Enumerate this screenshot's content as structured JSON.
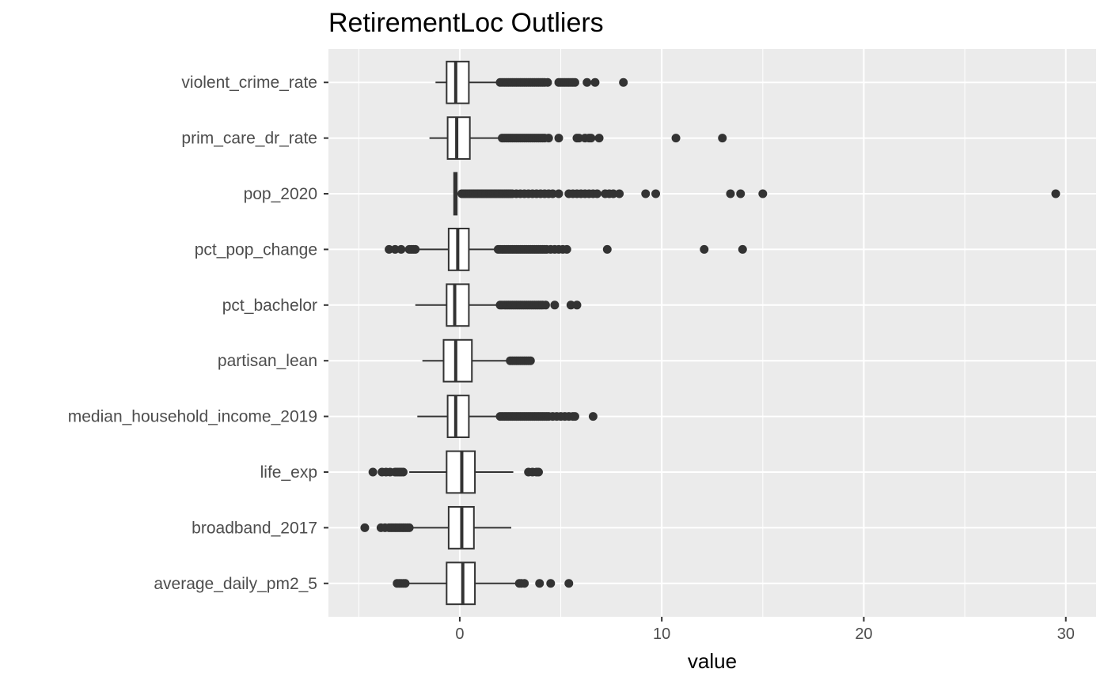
{
  "chart_data": {
    "type": "boxplot",
    "orientation": "horizontal",
    "title": "RetirementLoc Outliers",
    "xlabel": "value",
    "ylabel": "",
    "xlim": [
      -6.5,
      31.5
    ],
    "x_ticks": [
      0,
      10,
      20,
      30
    ],
    "x_tick_labels": [
      "0",
      "10",
      "20",
      "30"
    ],
    "grid": true,
    "panel_background": "#ebebeb",
    "grid_color": "#ffffff",
    "box_fill": "#ffffff",
    "line_color": "#333333",
    "categories": [
      "violent_crime_rate",
      "prim_care_dr_rate",
      "pop_2020",
      "pct_pop_change",
      "pct_bachelor",
      "partisan_lean",
      "median_household_income_2019",
      "life_exp",
      "broadband_2017",
      "average_daily_pm2_5"
    ],
    "series": [
      {
        "category": "violent_crime_rate",
        "min": -1.2,
        "q1": -0.65,
        "median": -0.2,
        "q3": 0.45,
        "max": 2.0,
        "outliers": [
          2.0,
          2.1,
          2.2,
          2.3,
          2.4,
          2.5,
          2.6,
          2.7,
          2.8,
          2.9,
          3.0,
          3.1,
          3.2,
          3.3,
          3.4,
          3.5,
          3.6,
          3.7,
          3.8,
          3.9,
          4.0,
          4.1,
          4.2,
          4.35,
          4.9,
          5.0,
          5.1,
          5.2,
          5.3,
          5.4,
          5.5,
          5.6,
          5.7,
          6.3,
          6.7,
          8.1
        ]
      },
      {
        "category": "prim_care_dr_rate",
        "min": -1.5,
        "q1": -0.6,
        "median": -0.15,
        "q3": 0.5,
        "max": 2.1,
        "outliers": [
          2.1,
          2.2,
          2.3,
          2.4,
          2.5,
          2.6,
          2.7,
          2.8,
          2.9,
          3.0,
          3.1,
          3.2,
          3.3,
          3.4,
          3.5,
          3.6,
          3.7,
          3.8,
          3.9,
          4.0,
          4.1,
          4.2,
          4.4,
          4.9,
          5.8,
          5.9,
          6.2,
          6.4,
          6.5,
          6.9,
          10.7,
          13.0
        ]
      },
      {
        "category": "pop_2020",
        "min": -0.3,
        "q1": -0.28,
        "median": -0.22,
        "q3": -0.15,
        "max": 0.1,
        "outliers": [
          0.1,
          0.2,
          0.3,
          0.4,
          0.5,
          0.6,
          0.7,
          0.8,
          0.9,
          1.0,
          1.1,
          1.2,
          1.3,
          1.4,
          1.5,
          1.6,
          1.7,
          1.8,
          1.9,
          2.0,
          2.1,
          2.2,
          2.3,
          2.4,
          2.5,
          2.6,
          2.8,
          3.0,
          3.2,
          3.4,
          3.6,
          3.8,
          4.0,
          4.2,
          4.4,
          4.6,
          4.9,
          5.4,
          5.6,
          5.8,
          6.0,
          6.2,
          6.4,
          6.6,
          6.8,
          7.2,
          7.4,
          7.6,
          7.9,
          9.2,
          9.7,
          13.4,
          13.9,
          15.0,
          29.5
        ]
      },
      {
        "category": "pct_pop_change",
        "min": -2.2,
        "q1": -0.55,
        "median": -0.1,
        "q3": 0.45,
        "max": 1.9,
        "outliers": [
          -3.5,
          -3.2,
          -2.9,
          -2.5,
          -2.4,
          -2.3,
          -2.2,
          1.9,
          2.0,
          2.1,
          2.2,
          2.3,
          2.4,
          2.5,
          2.6,
          2.7,
          2.8,
          2.9,
          3.0,
          3.1,
          3.2,
          3.3,
          3.4,
          3.5,
          3.6,
          3.7,
          3.8,
          3.9,
          4.0,
          4.1,
          4.2,
          4.3,
          4.5,
          4.7,
          4.9,
          5.1,
          5.3,
          7.3,
          12.1,
          14.0
        ]
      },
      {
        "category": "pct_bachelor",
        "min": -2.2,
        "q1": -0.65,
        "median": -0.25,
        "q3": 0.45,
        "max": 2.0,
        "outliers": [
          2.0,
          2.1,
          2.2,
          2.3,
          2.4,
          2.5,
          2.6,
          2.7,
          2.8,
          2.9,
          3.0,
          3.1,
          3.2,
          3.3,
          3.4,
          3.5,
          3.6,
          3.7,
          3.8,
          3.9,
          4.0,
          4.1,
          4.25,
          4.7,
          5.5,
          5.8
        ]
      },
      {
        "category": "partisan_lean",
        "min": -1.85,
        "q1": -0.8,
        "median": -0.2,
        "q3": 0.6,
        "max": 2.5,
        "outliers": [
          2.5,
          2.6,
          2.7,
          2.8,
          2.9,
          3.0,
          3.1,
          3.2,
          3.3,
          3.4,
          3.5
        ]
      },
      {
        "category": "median_household_income_2019",
        "min": -2.1,
        "q1": -0.6,
        "median": -0.2,
        "q3": 0.45,
        "max": 2.0,
        "outliers": [
          2.0,
          2.1,
          2.2,
          2.3,
          2.4,
          2.5,
          2.6,
          2.7,
          2.8,
          2.9,
          3.0,
          3.1,
          3.2,
          3.3,
          3.4,
          3.5,
          3.6,
          3.7,
          3.8,
          3.9,
          4.0,
          4.1,
          4.2,
          4.3,
          4.4,
          4.6,
          4.8,
          5.0,
          5.2,
          5.4,
          5.6,
          5.7,
          6.6
        ]
      },
      {
        "category": "life_exp",
        "min": -2.5,
        "q1": -0.65,
        "median": 0.1,
        "q3": 0.75,
        "max": 2.65,
        "outliers": [
          -4.3,
          -3.85,
          -3.65,
          -3.45,
          -3.2,
          -3.1,
          -3.0,
          -2.9,
          -2.8,
          3.4,
          3.6,
          3.8,
          3.9
        ]
      },
      {
        "category": "broadband_2017",
        "min": -2.5,
        "q1": -0.55,
        "median": 0.1,
        "q3": 0.7,
        "max": 2.55,
        "outliers": [
          -4.7,
          -3.9,
          -3.7,
          -3.5,
          -3.4,
          -3.3,
          -3.2,
          -3.1,
          -3.0,
          -2.9,
          -2.8,
          -2.7,
          -2.6,
          -2.5
        ]
      },
      {
        "category": "average_daily_pm2_5",
        "min": -2.7,
        "q1": -0.65,
        "median": 0.15,
        "q3": 0.75,
        "max": 2.8,
        "outliers": [
          -3.1,
          -3.0,
          -2.9,
          -2.8,
          -2.7,
          2.95,
          3.05,
          3.2,
          3.95,
          4.5,
          5.4
        ]
      }
    ]
  }
}
